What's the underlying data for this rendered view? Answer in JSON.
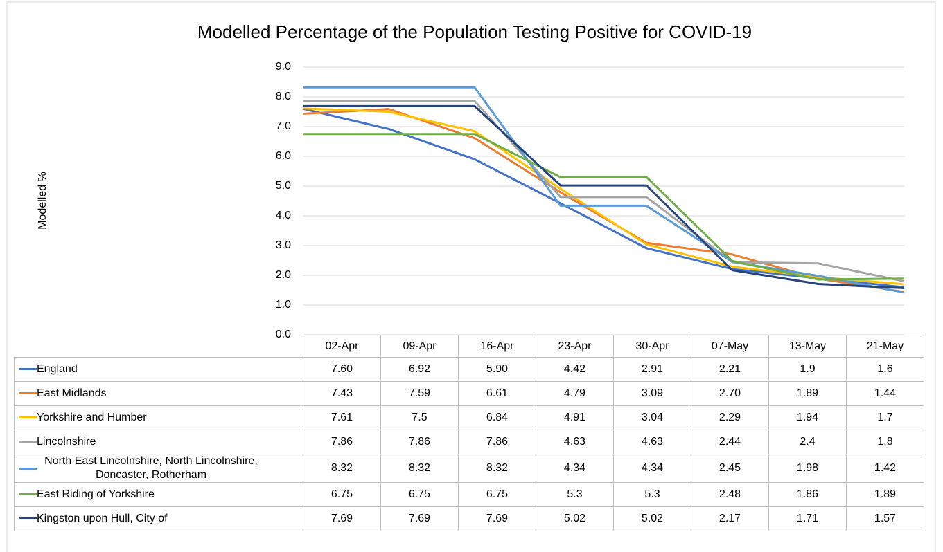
{
  "chart_data": {
    "type": "line",
    "title": "Modelled Percentage of the Population Testing Positive for COVID-19",
    "y_label": "Modelled %",
    "categories": [
      "02-Apr",
      "09-Apr",
      "16-Apr",
      "23-Apr",
      "30-Apr",
      "07-May",
      "13-May",
      "21-May"
    ],
    "ylim": [
      0,
      9
    ],
    "yticks": [
      {
        "value": 0,
        "label": "0.0"
      },
      {
        "value": 1,
        "label": "1.0"
      },
      {
        "value": 2,
        "label": "2.0"
      },
      {
        "value": 3,
        "label": "3.0"
      },
      {
        "value": 4,
        "label": "4.0"
      },
      {
        "value": 5,
        "label": "5.0"
      },
      {
        "value": 6,
        "label": "6.0"
      },
      {
        "value": 7,
        "label": "7.0"
      },
      {
        "value": 8,
        "label": "8.0"
      },
      {
        "value": 9,
        "label": "9.0"
      }
    ],
    "grid": true,
    "series": [
      {
        "name": "England",
        "color": "#4472c4",
        "values": [
          7.6,
          6.92,
          5.9,
          4.42,
          2.91,
          2.21,
          1.9,
          1.6
        ],
        "value_labels": [
          "7.60",
          "6.92",
          "5.90",
          "4.42",
          "2.91",
          "2.21",
          "1.9",
          "1.6"
        ]
      },
      {
        "name": "East Midlands",
        "color": "#ed7d31",
        "values": [
          7.43,
          7.59,
          6.61,
          4.79,
          3.09,
          2.7,
          1.89,
          1.44
        ],
        "value_labels": [
          "7.43",
          "7.59",
          "6.61",
          "4.79",
          "3.09",
          "2.70",
          "1.89",
          "1.44"
        ]
      },
      {
        "name": "Yorkshire and Humber",
        "color": "#ffc000",
        "values": [
          7.61,
          7.5,
          6.84,
          4.91,
          3.04,
          2.29,
          1.94,
          1.7
        ],
        "value_labels": [
          "7.61",
          "7.5",
          "6.84",
          "4.91",
          "3.04",
          "2.29",
          "1.94",
          "1.7"
        ]
      },
      {
        "name": "Lincolnshire",
        "color": "#a5a5a5",
        "values": [
          7.86,
          7.86,
          7.86,
          4.63,
          4.63,
          2.44,
          2.4,
          1.8
        ],
        "value_labels": [
          "7.86",
          "7.86",
          "7.86",
          "4.63",
          "4.63",
          "2.44",
          "2.4",
          "1.8"
        ]
      },
      {
        "name": "North East Lincolnshire, North Lincolnshire, Doncaster, Rotherham",
        "color": "#5b9bd5",
        "values": [
          8.32,
          8.32,
          8.32,
          4.34,
          4.34,
          2.45,
          1.98,
          1.42
        ],
        "value_labels": [
          "8.32",
          "8.32",
          "8.32",
          "4.34",
          "4.34",
          "2.45",
          "1.98",
          "1.42"
        ]
      },
      {
        "name": "East Riding of Yorkshire",
        "color": "#70ad47",
        "values": [
          6.75,
          6.75,
          6.75,
          5.3,
          5.3,
          2.48,
          1.86,
          1.89
        ],
        "value_labels": [
          "6.75",
          "6.75",
          "6.75",
          "5.3",
          "5.3",
          "2.48",
          "1.86",
          "1.89"
        ]
      },
      {
        "name": "Kingston upon Hull, City of",
        "color": "#264478",
        "values": [
          7.69,
          7.69,
          7.69,
          5.02,
          5.02,
          2.17,
          1.71,
          1.57
        ],
        "value_labels": [
          "7.69",
          "7.69",
          "7.69",
          "5.02",
          "5.02",
          "2.17",
          "1.71",
          "1.57"
        ]
      }
    ]
  }
}
